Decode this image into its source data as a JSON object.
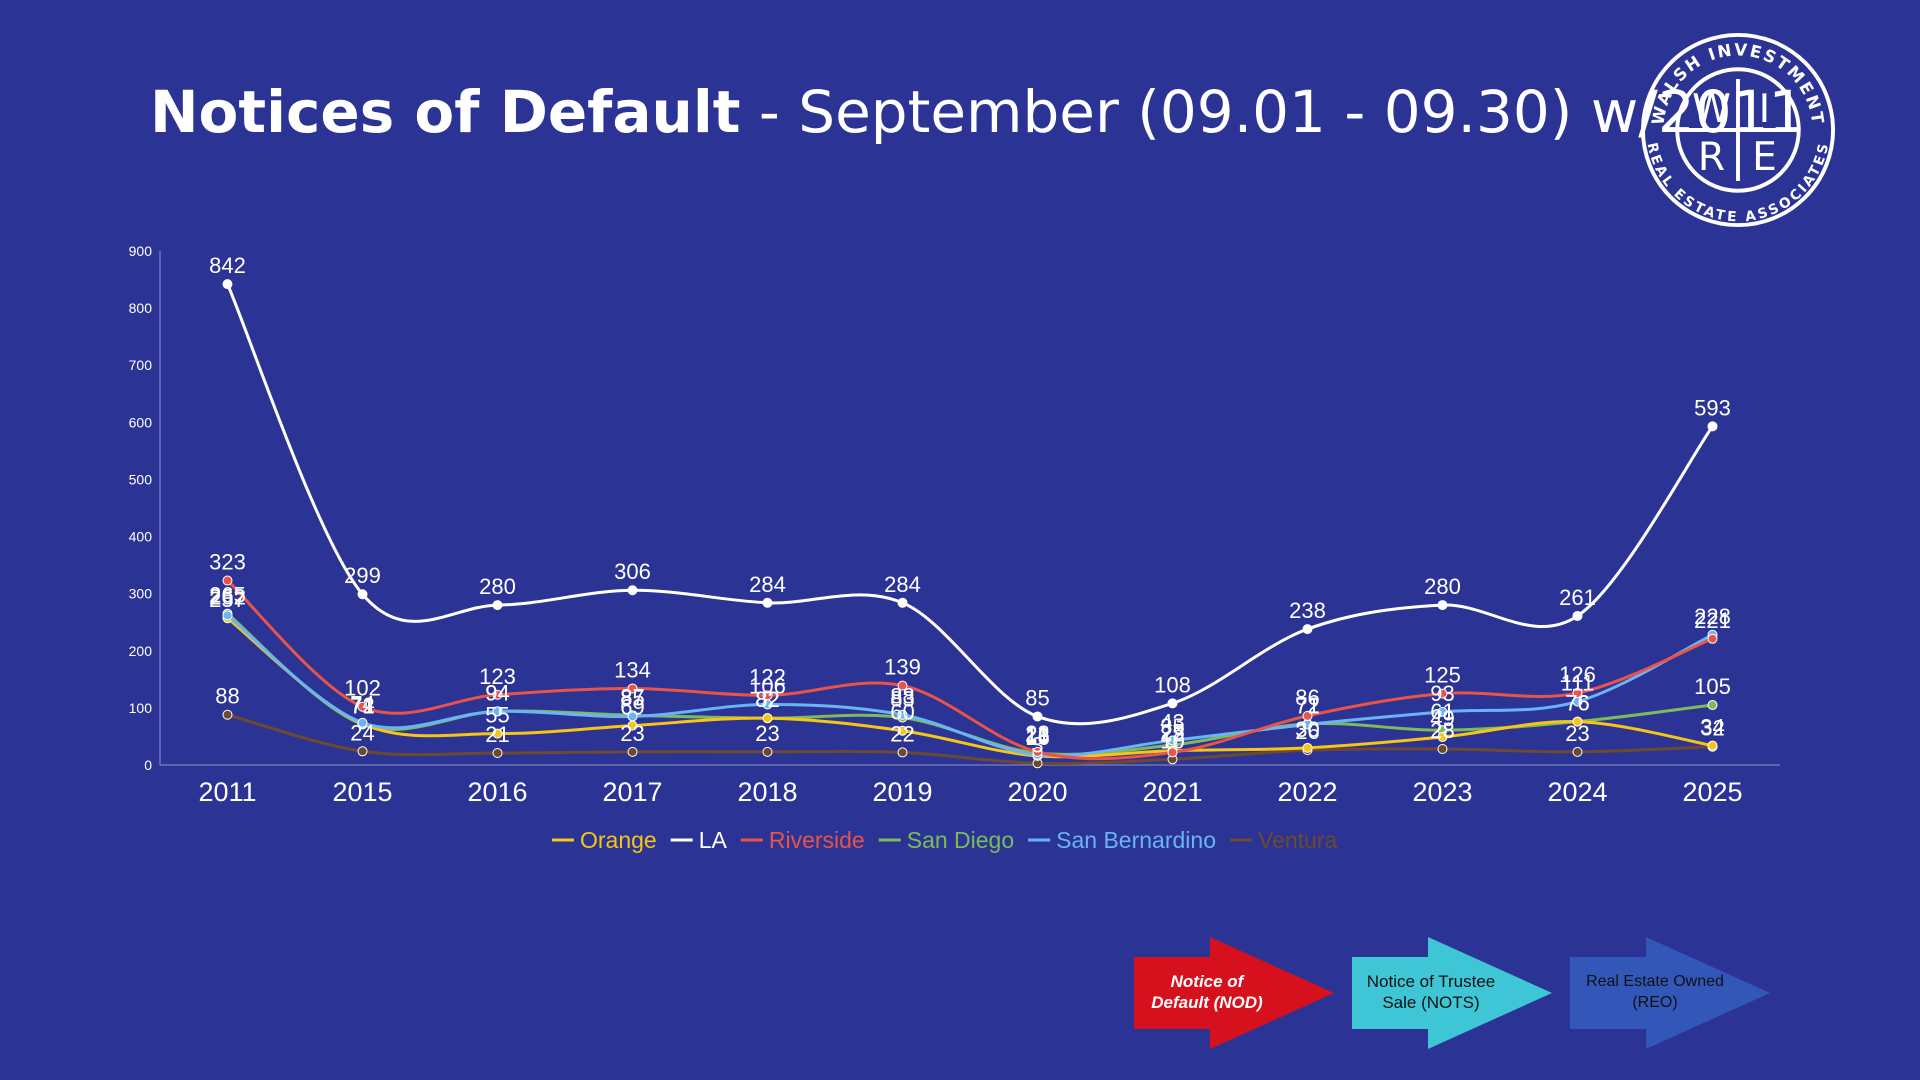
{
  "title": {
    "bold": "Notices of Default",
    "rest": " - September (09.01 - 09.30)  w/2011"
  },
  "logo": {
    "letters": [
      "W",
      "I",
      "R",
      "E"
    ],
    "ring_top": "WALSH INVESTMENT",
    "ring_bottom": "REAL ESTATE ASSOCIATES"
  },
  "chart_data": {
    "type": "line",
    "categories": [
      "2011",
      "2015",
      "2016",
      "2017",
      "2018",
      "2019",
      "2020",
      "2021",
      "2022",
      "2023",
      "2024",
      "2025"
    ],
    "ylim": [
      0,
      900
    ],
    "yticks": [
      0,
      100,
      200,
      300,
      400,
      500,
      600,
      700,
      800,
      900
    ],
    "grid": false,
    "legend_position": "bottom",
    "series": [
      {
        "name": "Orange",
        "color": "#f5c518",
        "values": [
          257,
          72,
          55,
          69,
          82,
          60,
          16,
          25,
          30,
          49,
          76,
          34
        ]
      },
      {
        "name": "LA",
        "color": "#ffffff",
        "values": [
          842,
          299,
          280,
          306,
          284,
          284,
          85,
          108,
          238,
          280,
          261,
          593
        ]
      },
      {
        "name": "Riverside",
        "color": "#e8534a",
        "values": [
          323,
          102,
          123,
          134,
          122,
          139,
          23,
          22,
          86,
          125,
          126,
          221
        ]
      },
      {
        "name": "San Diego",
        "color": "#7dbb5a",
        "values": [
          265,
          71,
          94,
          87,
          82,
          83,
          21,
          35,
          72,
          61,
          76,
          105
        ]
      },
      {
        "name": "San Bernardino",
        "color": "#6bb3f5",
        "values": [
          262,
          74,
          94,
          85,
          106,
          88,
          18,
          43,
          71,
          93,
          111,
          228
        ]
      },
      {
        "name": "Ventura",
        "color": "#6b4a2f",
        "values": [
          88,
          24,
          21,
          23,
          23,
          22,
          3,
          10,
          26,
          28,
          23,
          32
        ]
      }
    ]
  },
  "process": {
    "nod": "Notice of Default (NOD)",
    "nots": "Notice of Trustee Sale (NOTS)",
    "reo": "Real Estate Owned (REO)",
    "colors": {
      "nod": "#d7101e",
      "nots": "#3ec6d6",
      "reo": "#3257b8"
    }
  }
}
